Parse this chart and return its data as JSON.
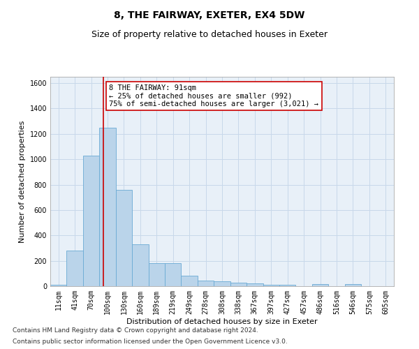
{
  "title": "8, THE FAIRWAY, EXETER, EX4 5DW",
  "subtitle": "Size of property relative to detached houses in Exeter",
  "xlabel": "Distribution of detached houses by size in Exeter",
  "ylabel": "Number of detached properties",
  "footnote1": "Contains HM Land Registry data © Crown copyright and database right 2024.",
  "footnote2": "Contains public sector information licensed under the Open Government Licence v3.0.",
  "bar_heights": [
    10,
    280,
    1030,
    1250,
    760,
    330,
    180,
    180,
    80,
    45,
    40,
    30,
    20,
    10,
    10,
    0,
    15,
    0,
    15,
    0,
    0
  ],
  "bin_labels": [
    "11sqm",
    "41sqm",
    "70sqm",
    "100sqm",
    "130sqm",
    "160sqm",
    "189sqm",
    "219sqm",
    "249sqm",
    "278sqm",
    "308sqm",
    "338sqm",
    "367sqm",
    "397sqm",
    "427sqm",
    "457sqm",
    "486sqm",
    "516sqm",
    "546sqm",
    "575sqm",
    "605sqm"
  ],
  "bar_color": "#bad4ea",
  "bar_edge_color": "#6aaad4",
  "vline_x": 2.75,
  "vline_color": "#cc0000",
  "annotation_text": "8 THE FAIRWAY: 91sqm\n← 25% of detached houses are smaller (992)\n75% of semi-detached houses are larger (3,021) →",
  "annotation_box_color": "#ffffff",
  "annotation_box_edge_color": "#cc0000",
  "ylim": [
    0,
    1650
  ],
  "yticks": [
    0,
    200,
    400,
    600,
    800,
    1000,
    1200,
    1400,
    1600
  ],
  "grid_color": "#c8d8ea",
  "bg_color": "#e8f0f8",
  "title_fontsize": 10,
  "subtitle_fontsize": 9,
  "label_fontsize": 8,
  "tick_fontsize": 7,
  "footnote_fontsize": 6.5,
  "annotation_fontsize": 7.5
}
